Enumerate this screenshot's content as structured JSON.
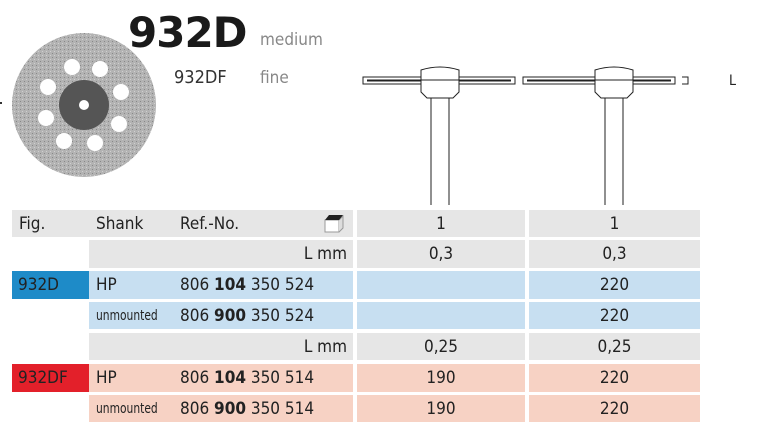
{
  "product": {
    "title": "932D",
    "grade_medium": "medium",
    "variant": "932DF",
    "grade_fine": "fine",
    "dimension_marker": "L"
  },
  "table": {
    "headers": {
      "fig": "Fig.",
      "shank": "Shank",
      "ref": "Ref.-No.",
      "col1": "1",
      "col2": "1"
    },
    "pack_icon": "package-box-icon",
    "groups": [
      {
        "fig": "932D",
        "fig_color": "#1e8bc8",
        "row_color": "#c7dff1",
        "lmm_label": "L mm",
        "lmm": [
          "0,3",
          "0,3"
        ],
        "rows": [
          {
            "shank": "HP",
            "ref_a": "806",
            "ref_b": "104",
            "ref_c": "350 524",
            "v1": "",
            "v2": "220"
          },
          {
            "shank": "unmounted",
            "ref_a": "806",
            "ref_b": "900",
            "ref_c": "350 524",
            "v1": "",
            "v2": "220"
          }
        ]
      },
      {
        "fig": "932DF",
        "fig_color": "#e3202a",
        "row_color": "#f7d2c4",
        "lmm_label": "L mm",
        "lmm": [
          "0,25",
          "0,25"
        ],
        "rows": [
          {
            "shank": "HP",
            "ref_a": "806",
            "ref_b": "104",
            "ref_c": "350 514",
            "v1": "190",
            "v2": "220"
          },
          {
            "shank": "unmounted",
            "ref_a": "806",
            "ref_b": "900",
            "ref_c": "350 514",
            "v1": "190",
            "v2": "220"
          }
        ]
      }
    ]
  }
}
